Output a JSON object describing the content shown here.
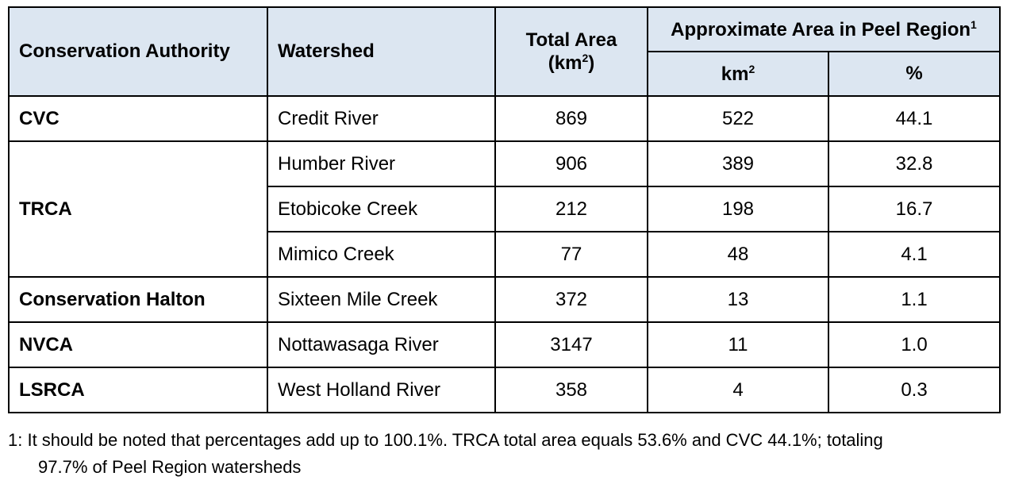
{
  "table": {
    "headers": {
      "authority": "Conservation Authority",
      "watershed": "Watershed",
      "total_area": "Total Area",
      "total_area_unit": "(km",
      "total_area_unit_sup": "2",
      "total_area_unit_close": ")",
      "peel_group": "Approximate Area in Peel Region",
      "peel_group_sup": "1",
      "km2": "km",
      "km2_sup": "2",
      "percent": "%"
    },
    "rows": [
      {
        "authority": "CVC",
        "watershed": "Credit River",
        "total": "869",
        "peel_km2": "522",
        "peel_pct": "44.1"
      },
      {
        "authority": "TRCA",
        "watershed": "Humber River",
        "total": "906",
        "peel_km2": "389",
        "peel_pct": "32.8"
      },
      {
        "authority": "",
        "watershed": "Etobicoke Creek",
        "total": "212",
        "peel_km2": "198",
        "peel_pct": "16.7"
      },
      {
        "authority": "",
        "watershed": "Mimico Creek",
        "total": "77",
        "peel_km2": "48",
        "peel_pct": "4.1"
      },
      {
        "authority": "Conservation Halton",
        "watershed": "Sixteen Mile Creek",
        "total": "372",
        "peel_km2": "13",
        "peel_pct": "1.1"
      },
      {
        "authority": "NVCA",
        "watershed": "Nottawasaga River",
        "total": "3147",
        "peel_km2": "11",
        "peel_pct": "1.0"
      },
      {
        "authority": "LSRCA",
        "watershed": "West Holland River",
        "total": "358",
        "peel_km2": "4",
        "peel_pct": "0.3"
      }
    ]
  },
  "footnote": {
    "line1": "1: It should be noted that percentages add up to 100.1%. TRCA total area equals 53.6% and CVC 44.1%; totaling",
    "line2": "97.7% of Peel Region watersheds"
  }
}
